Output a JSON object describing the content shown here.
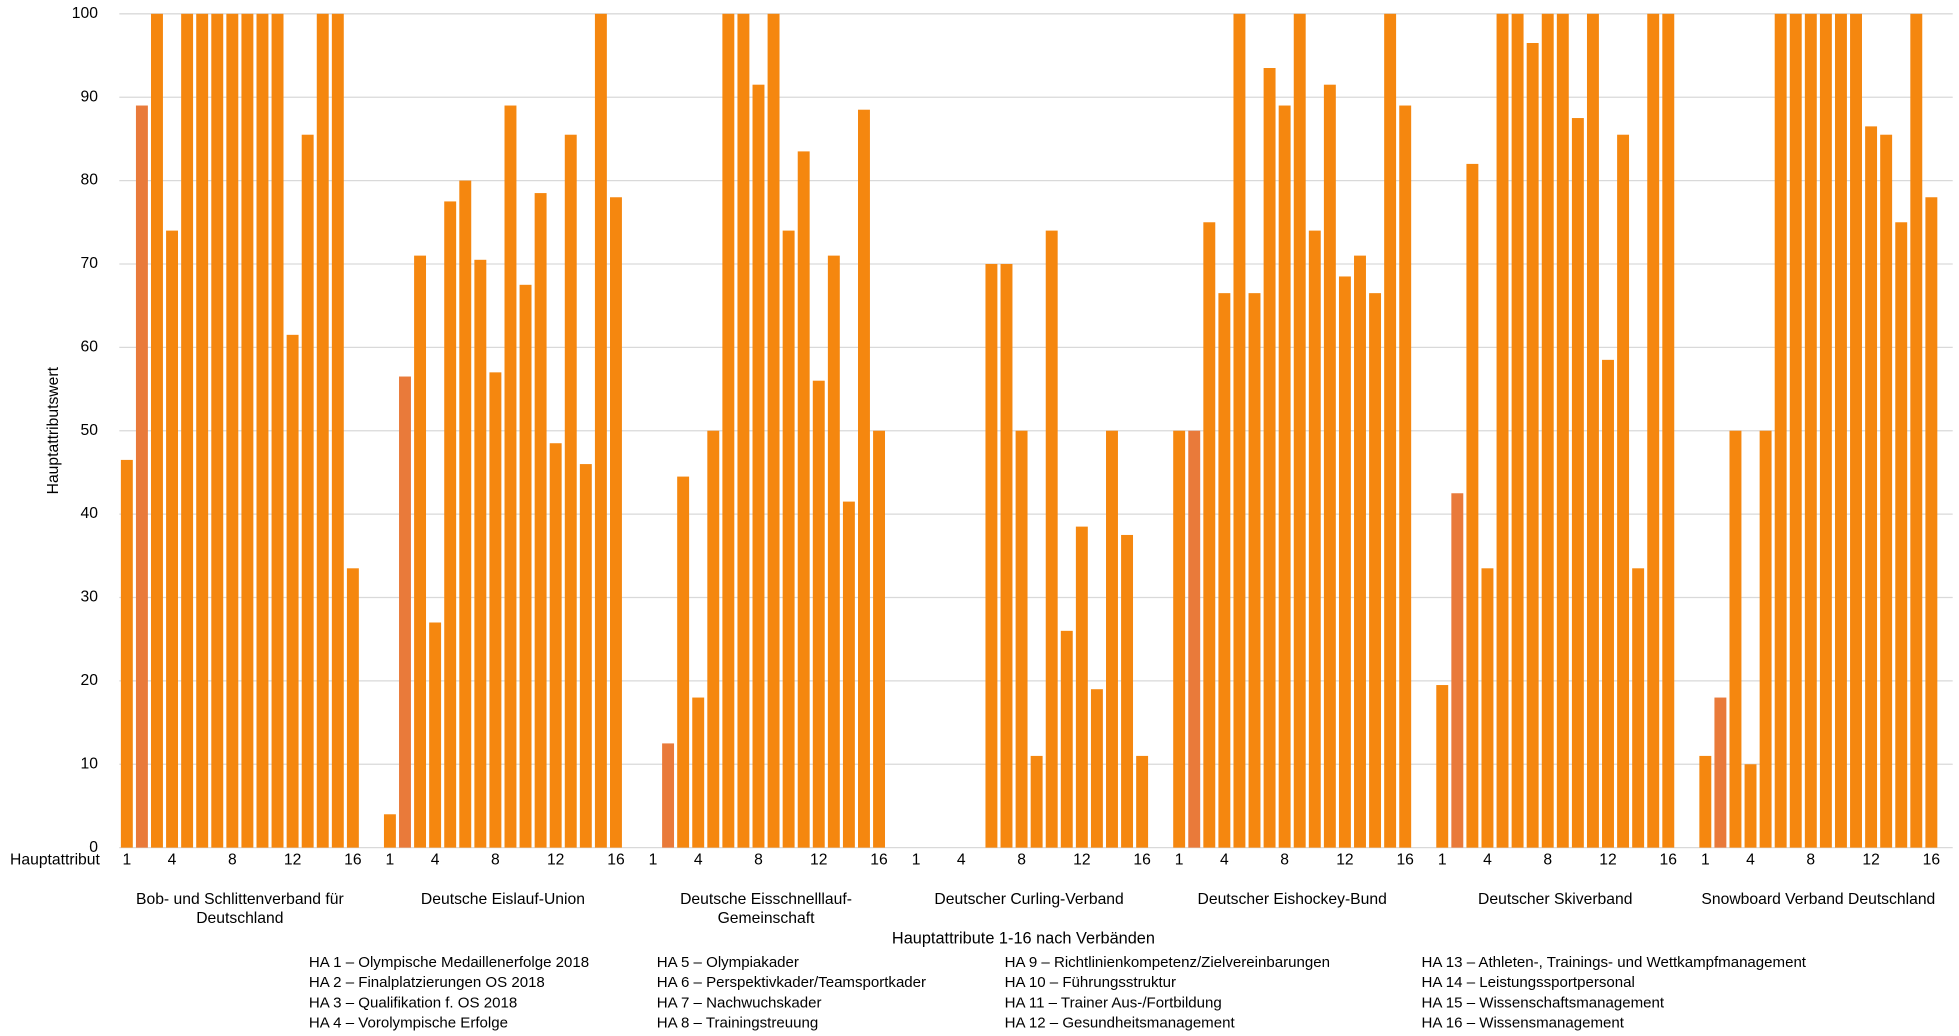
{
  "chart_data": {
    "type": "bar",
    "ylabel": "Hauptattributswert",
    "xlabel": "Hauptattribute  1-16 nach Verbänden",
    "x_row_label": "Hauptattribut",
    "ylim": [
      0,
      100
    ],
    "yticks": [
      0,
      10,
      20,
      30,
      40,
      50,
      60,
      70,
      80,
      90,
      100
    ],
    "grid": true,
    "categories": [
      "1",
      null,
      null,
      "4",
      null,
      null,
      null,
      "8",
      null,
      null,
      null,
      "12",
      null,
      null,
      null,
      "16"
    ],
    "bar_colors": [
      "#f5870f",
      "#e97a3a",
      "#f5870f",
      "#f5870f",
      "#f5870f",
      "#f5870f",
      "#f5870f",
      "#f5870f",
      "#f5870f",
      "#f5870f",
      "#f5870f",
      "#f5870f",
      "#f5870f",
      "#f5870f",
      "#f5870f",
      "#f5870f"
    ],
    "groups": [
      {
        "name": "Bob- und Schlittenverband für Deutschland",
        "values": [
          46.5,
          89,
          100,
          74,
          100,
          100,
          100,
          100,
          100,
          100,
          100,
          61.5,
          85.5,
          100,
          100,
          33.5
        ]
      },
      {
        "name": "Deutsche Eislauf-Union",
        "values": [
          4,
          56.5,
          71,
          27,
          77.5,
          80,
          70.5,
          57,
          89,
          67.5,
          78.5,
          48.5,
          85.5,
          46,
          100,
          78
        ]
      },
      {
        "name": "Deutsche Eisschnelllauf-Gemeinschaft",
        "values": [
          0,
          12.5,
          44.5,
          18,
          50,
          100,
          100,
          91.5,
          100,
          74,
          83.5,
          56,
          71,
          41.5,
          88.5,
          50
        ]
      },
      {
        "name": "Deutscher Curling-Verband",
        "values": [
          0,
          0,
          0,
          0,
          0,
          70,
          70,
          50,
          11,
          74,
          26,
          38.5,
          19,
          50,
          37.5,
          11
        ]
      },
      {
        "name": "Deutscher Eishockey-Bund",
        "values": [
          50,
          50,
          75,
          66.5,
          100,
          66.5,
          93.5,
          89,
          100,
          74,
          91.5,
          68.5,
          71,
          66.5,
          100,
          89
        ]
      },
      {
        "name": "Deutscher Skiverband",
        "values": [
          19.5,
          42.5,
          82,
          33.5,
          100,
          100,
          96.5,
          100,
          100,
          87.5,
          100,
          58.5,
          85.5,
          33.5,
          100,
          100
        ]
      },
      {
        "name": "Snowboard Verband Deutschland",
        "values": [
          11,
          18,
          50,
          10,
          50,
          100,
          100,
          100,
          100,
          100,
          100,
          86.5,
          85.5,
          75,
          100,
          78
        ]
      }
    ],
    "notes": [
      [
        "HA 1 – Olympische Medaillenerfolge 2018",
        "HA 2 – Finalplatzierungen OS 2018",
        "HA 3 – Qualifikation f. OS 2018",
        "HA 4 – Vorolympische Erfolge"
      ],
      [
        "HA 5 – Olympiakader",
        "HA 6 – Perspektivkader/Teamsportkader",
        "HA 7 – Nachwuchskader",
        "HA 8 – Trainingstreuung"
      ],
      [
        "HA 9 – Richtlinienkompetenz/Zielvereinbarungen",
        "HA 10 – Führungsstruktur",
        "HA 11 – Trainer Aus-/Fortbildung",
        "HA 12 – Gesundheitsmanagement"
      ],
      [
        "HA 13 – Athleten-, Trainings- und Wettkampfmanagement",
        "HA 14 – Leistungssportpersonal",
        "HA 15 – Wissenschaftsmanagement",
        "HA 16 – Wissensmanagement"
      ]
    ]
  }
}
